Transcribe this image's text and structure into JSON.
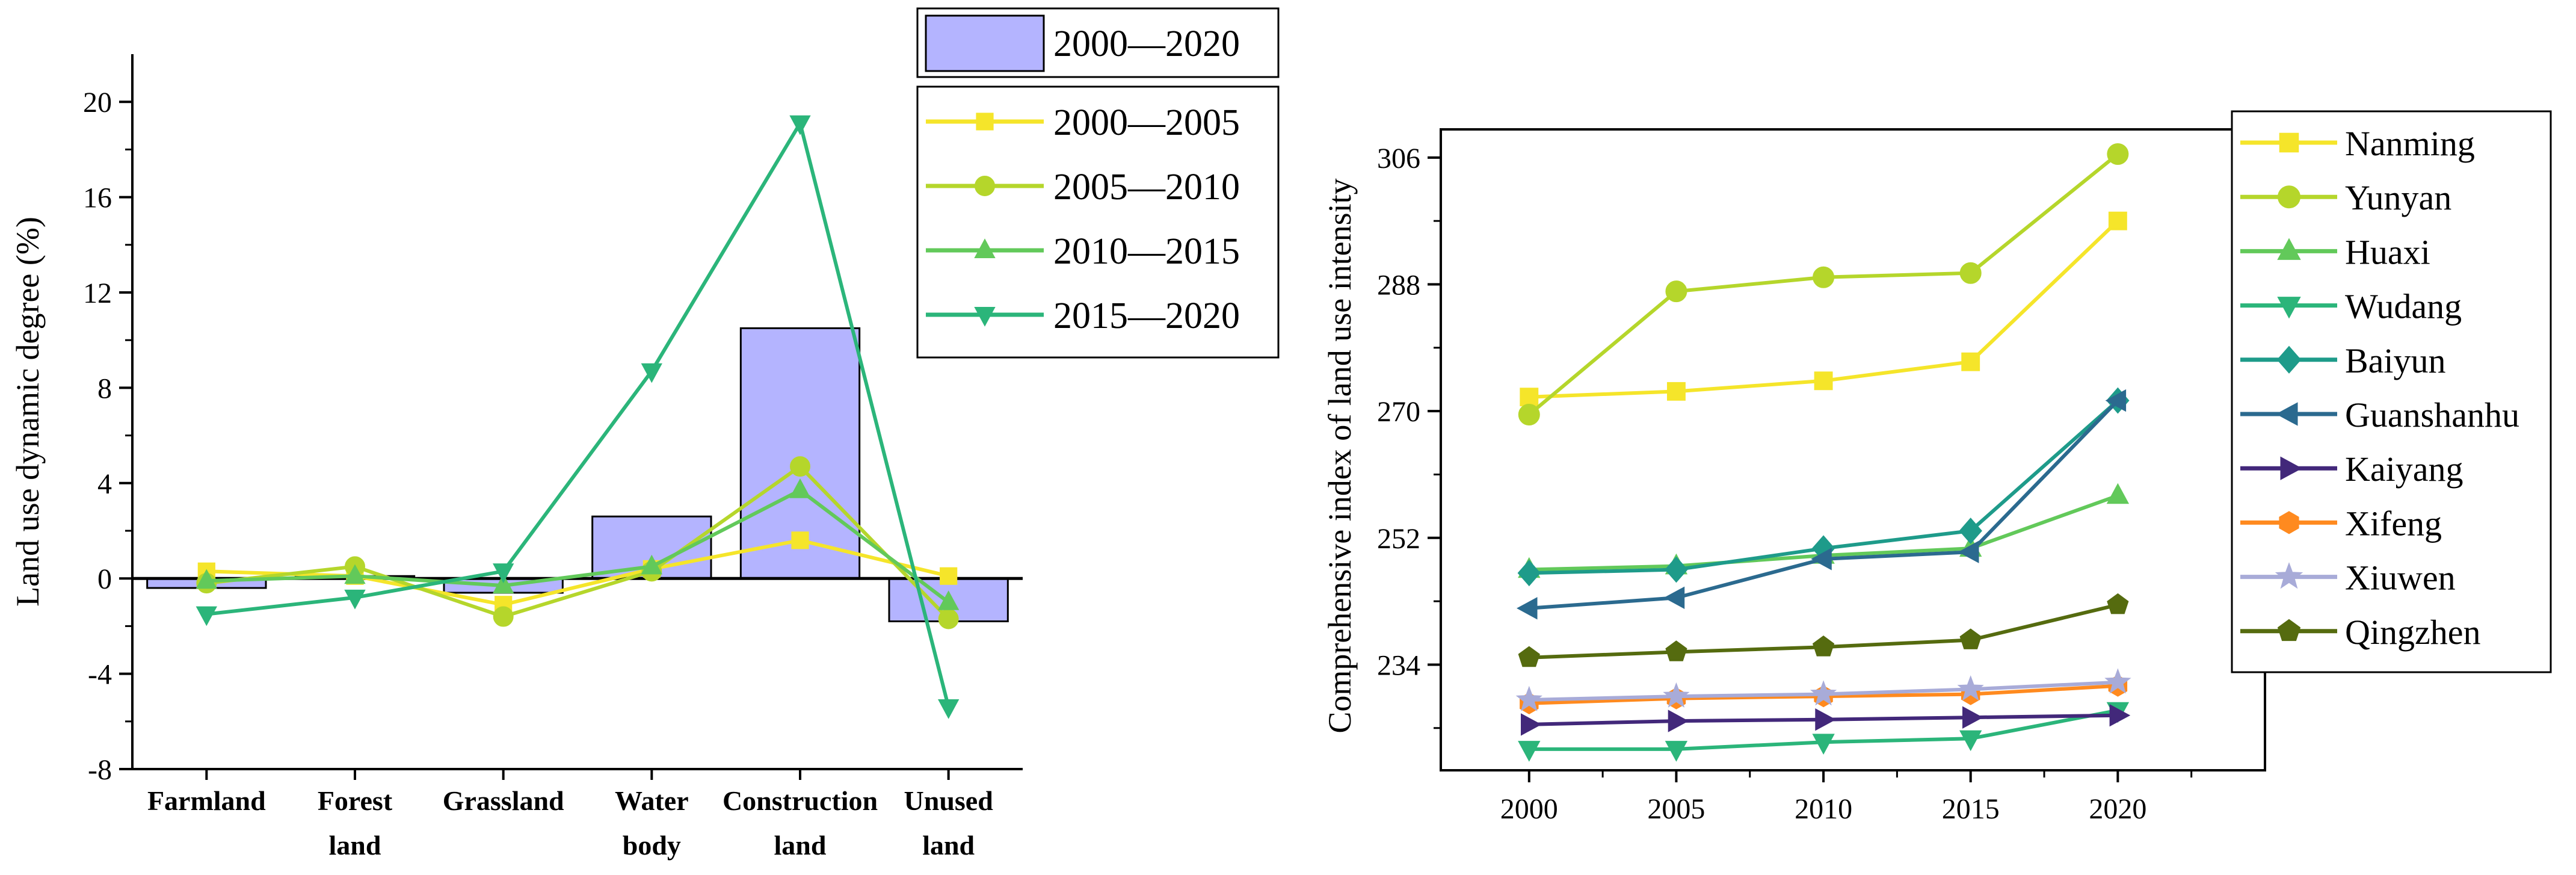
{
  "chart_data": [
    {
      "type": "bar+line",
      "title": "",
      "ylabel": "Land use dynamic degree (%)",
      "xlabel": "",
      "ylim": [
        -8,
        22
      ],
      "yticks": [
        20,
        16,
        12,
        8,
        4,
        0,
        -4,
        -8
      ],
      "categories": [
        "Farmland",
        "Forest land",
        "Grassland",
        "Water body",
        "Construction land",
        "Unused land"
      ],
      "category_lines": [
        [
          "Farmland"
        ],
        [
          "Forest",
          "land"
        ],
        [
          "Grassland"
        ],
        [
          "Water",
          "body"
        ],
        [
          "Construction",
          "land"
        ],
        [
          "Unused",
          "land"
        ]
      ],
      "bars": {
        "name": "2000—2020",
        "values": [
          -0.4,
          0.1,
          -0.6,
          2.6,
          10.5,
          -1.8
        ],
        "color": "#b4b4ff"
      },
      "series": [
        {
          "name": "2000—2005",
          "values": [
            0.3,
            0.1,
            -1.1,
            0.4,
            1.6,
            0.1
          ],
          "color": "#f5e52a",
          "marker": "square"
        },
        {
          "name": "2005—2010",
          "values": [
            -0.2,
            0.5,
            -1.6,
            0.3,
            4.7,
            -1.7
          ],
          "color": "#b5d62b",
          "marker": "circle"
        },
        {
          "name": "2010—2015",
          "values": [
            -0.1,
            0.1,
            -0.3,
            0.5,
            3.7,
            -1.0
          ],
          "color": "#62c95a",
          "marker": "triangle-up"
        },
        {
          "name": "2015—2020",
          "values": [
            -1.5,
            -0.8,
            0.3,
            8.7,
            19.1,
            -5.4
          ],
          "color": "#2bb57a",
          "marker": "triangle-down"
        }
      ]
    },
    {
      "type": "line",
      "title": "",
      "ylabel": "Comprehensive index of land use intensity",
      "xlabel": "",
      "x": [
        2000,
        2005,
        2010,
        2015,
        2020
      ],
      "ylim": [
        219,
        310
      ],
      "yticks": [
        306,
        288,
        270,
        252,
        234
      ],
      "series": [
        {
          "name": "Nanming",
          "values": [
            272.0,
            272.8,
            274.3,
            277.0,
            297.0
          ],
          "color": "#f5e52a",
          "marker": "square"
        },
        {
          "name": "Yunyan",
          "values": [
            269.5,
            287.0,
            289.0,
            289.6,
            306.5
          ],
          "color": "#b5d62b",
          "marker": "circle"
        },
        {
          "name": "Huaxi",
          "values": [
            247.5,
            248.0,
            249.5,
            250.5,
            258.0
          ],
          "color": "#62c95a",
          "marker": "triangle-up"
        },
        {
          "name": "Wudang",
          "values": [
            222.0,
            222.0,
            223.0,
            223.5,
            227.5
          ],
          "color": "#2bb57a",
          "marker": "triangle-down"
        },
        {
          "name": "Baiyun",
          "values": [
            247.0,
            247.5,
            250.5,
            253.0,
            271.5
          ],
          "color": "#1e9b8a",
          "marker": "diamond"
        },
        {
          "name": "Guanshanhu",
          "values": [
            242.0,
            243.5,
            249.0,
            250.0,
            271.5
          ],
          "color": "#2b6a8f",
          "marker": "triangle-left"
        },
        {
          "name": "Kaiyang",
          "values": [
            225.5,
            226.0,
            226.2,
            226.5,
            226.8
          ],
          "color": "#42287a",
          "marker": "triangle-right"
        },
        {
          "name": "Xifeng",
          "values": [
            228.5,
            229.2,
            229.5,
            229.8,
            231.0
          ],
          "color": "#ff8a1f",
          "marker": "hexagon"
        },
        {
          "name": "Xiuwen",
          "values": [
            229.0,
            229.5,
            229.8,
            230.5,
            231.5
          ],
          "color": "#a8abd8",
          "marker": "star"
        },
        {
          "name": "Qingzhen",
          "values": [
            235.0,
            235.8,
            236.5,
            237.5,
            242.5
          ],
          "color": "#556b0f",
          "marker": "pentagon"
        }
      ]
    }
  ]
}
